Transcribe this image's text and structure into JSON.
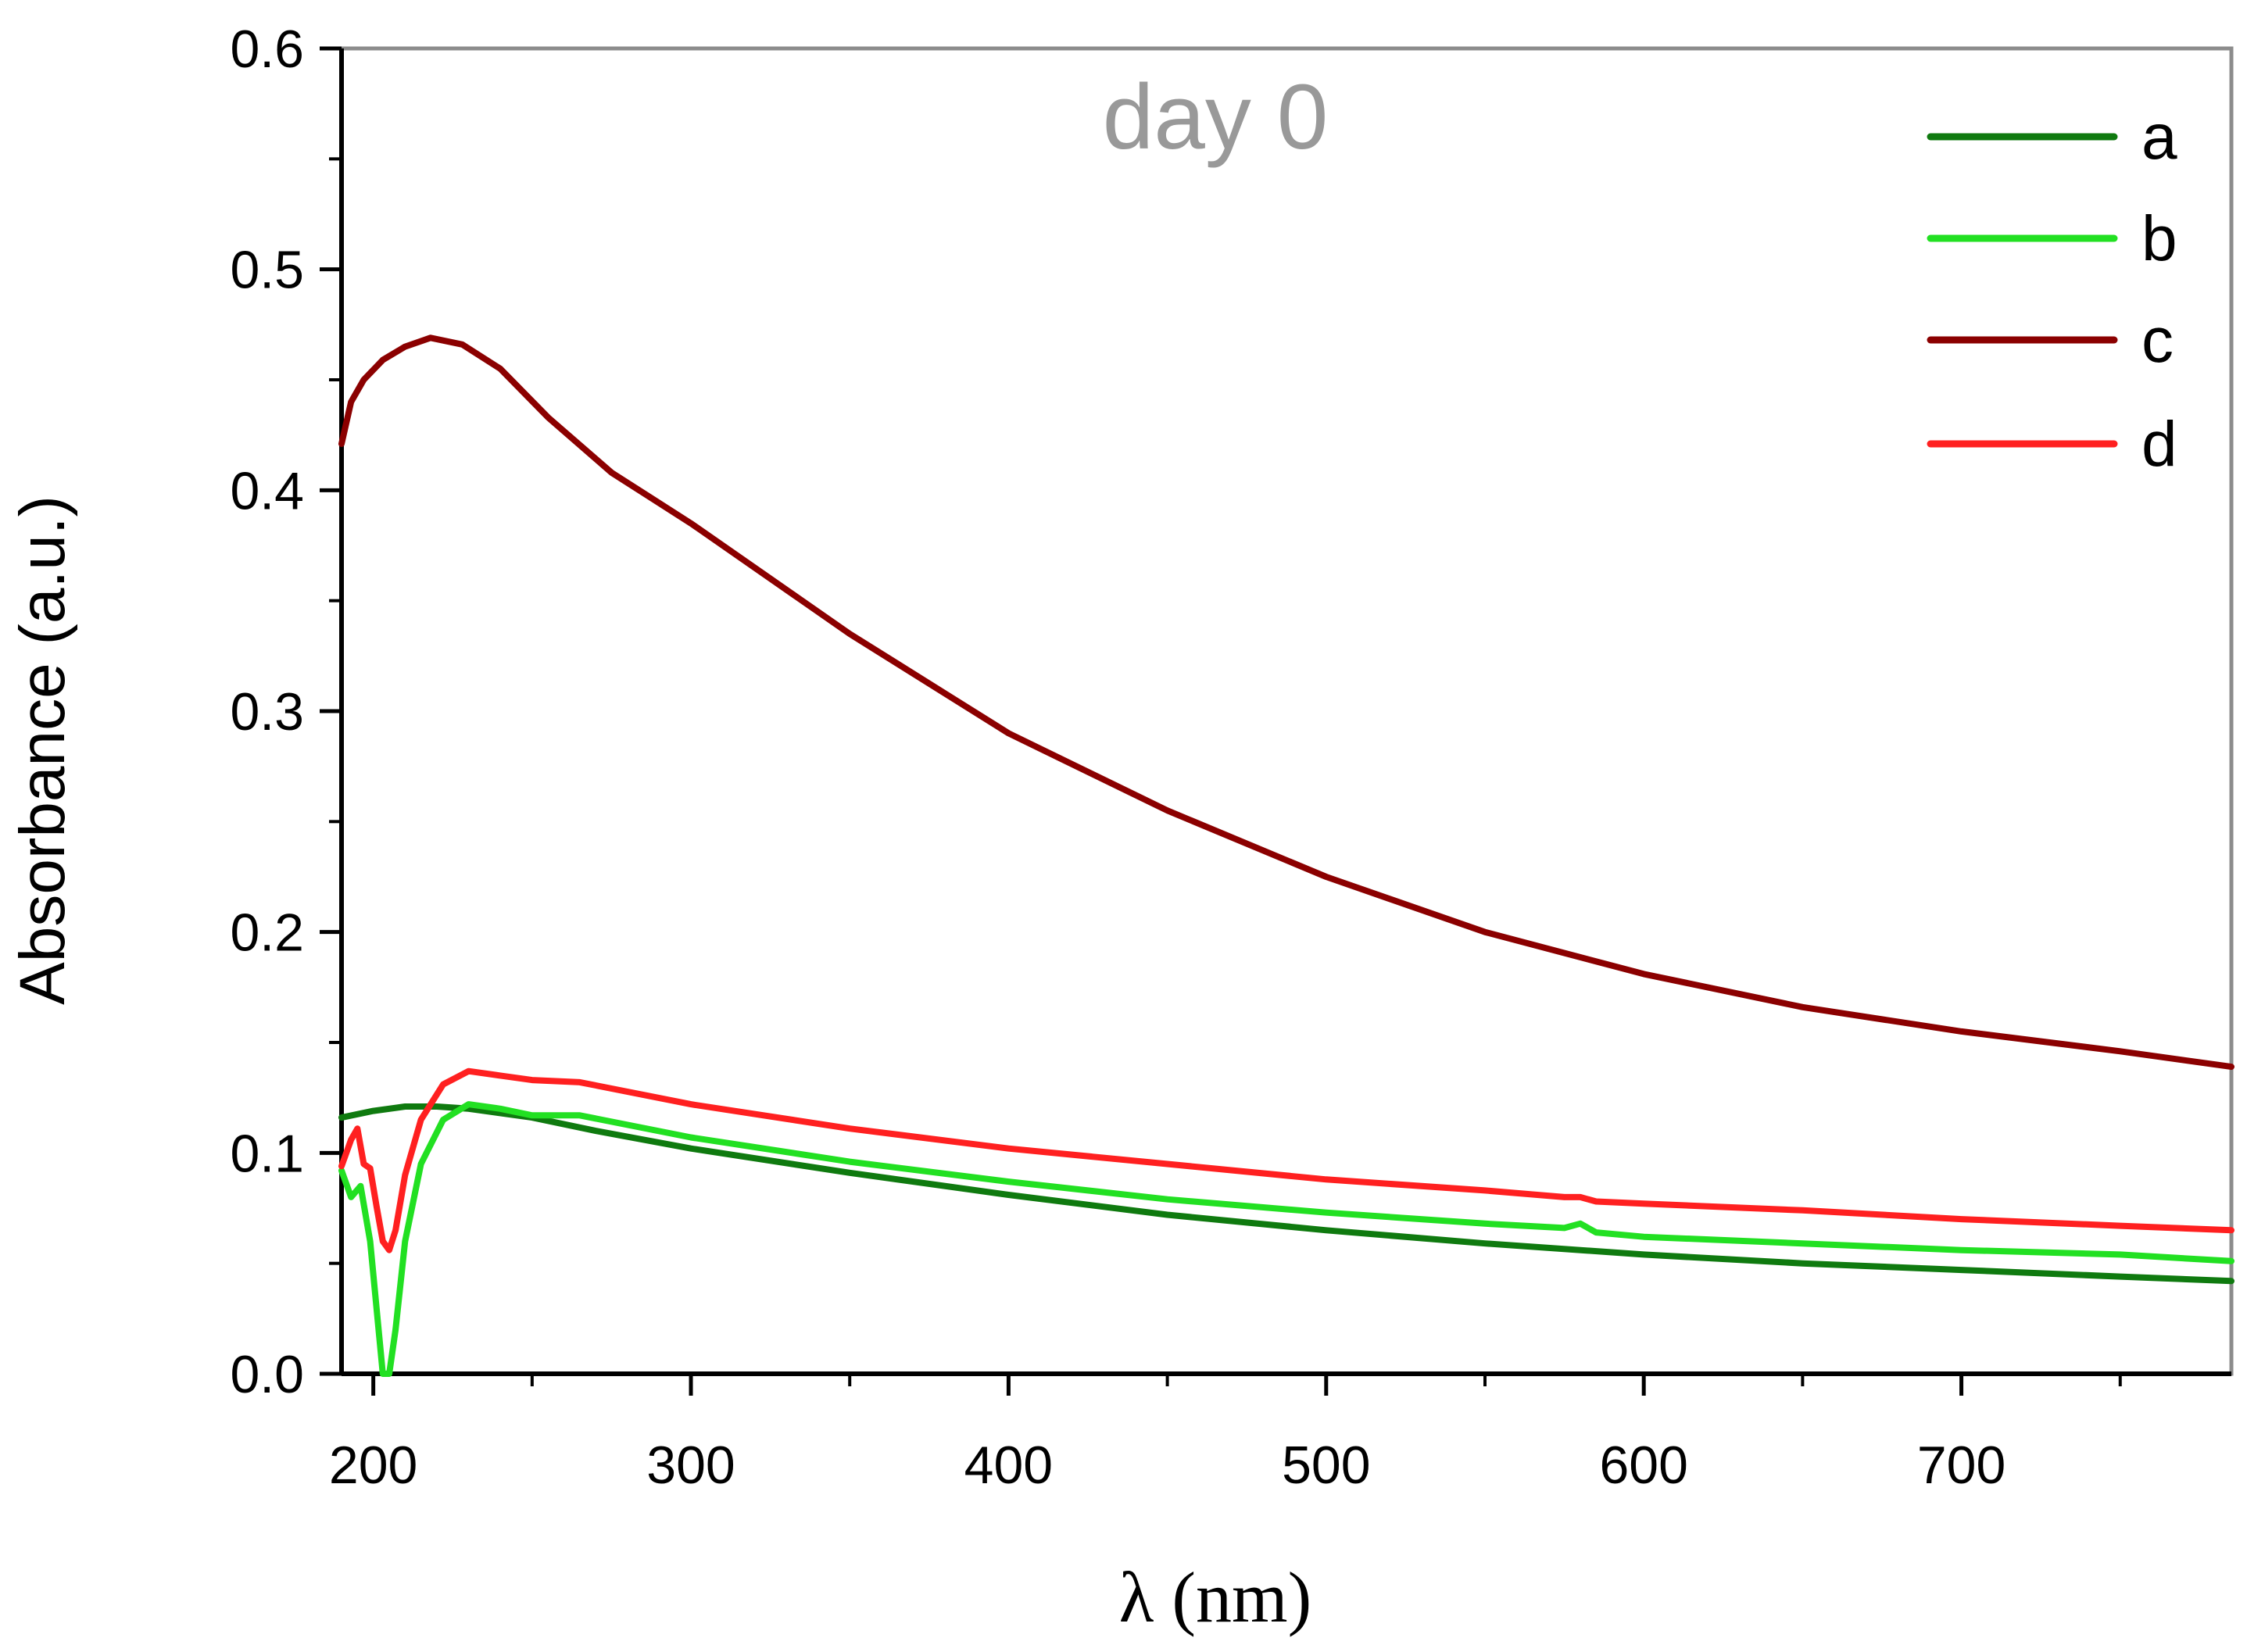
{
  "chart_data": {
    "type": "line",
    "title": "",
    "annotation": "day 0",
    "xlabel": "λ (nm)",
    "ylabel": "Absorbance (a.u.)",
    "xlim": [
      190,
      785
    ],
    "ylim": [
      0.0,
      0.6
    ],
    "xticks": [
      200,
      300,
      400,
      500,
      600,
      700
    ],
    "xtick_labels": [
      "200",
      "300",
      "400",
      "500",
      "600",
      "700"
    ],
    "yticks": [
      0.0,
      0.1,
      0.2,
      0.3,
      0.4,
      0.5,
      0.6
    ],
    "ytick_labels": [
      "0.0",
      "0.1",
      "0.2",
      "0.3",
      "0.4",
      "0.5",
      "0.6"
    ],
    "grid": false,
    "legend_position": "top-right",
    "series": [
      {
        "name": "a",
        "color": "#0f7a0f",
        "x": [
          190,
          200,
          210,
          220,
          230,
          250,
          270,
          300,
          350,
          400,
          450,
          500,
          550,
          600,
          650,
          700,
          750,
          785
        ],
        "y": [
          0.116,
          0.119,
          0.121,
          0.121,
          0.12,
          0.116,
          0.11,
          0.102,
          0.091,
          0.081,
          0.072,
          0.065,
          0.059,
          0.054,
          0.05,
          0.047,
          0.044,
          0.042
        ]
      },
      {
        "name": "b",
        "color": "#22e022",
        "x": [
          190,
          193,
          196,
          199,
          201,
          203,
          205,
          207,
          210,
          215,
          222,
          230,
          240,
          250,
          265,
          300,
          350,
          400,
          450,
          500,
          550,
          575,
          580,
          585,
          600,
          650,
          700,
          750,
          785
        ],
        "y": [
          0.092,
          0.08,
          0.085,
          0.06,
          0.03,
          0.0,
          0.0,
          0.02,
          0.06,
          0.095,
          0.115,
          0.122,
          0.12,
          0.117,
          0.117,
          0.107,
          0.096,
          0.087,
          0.079,
          0.073,
          0.068,
          0.066,
          0.068,
          0.064,
          0.062,
          0.059,
          0.056,
          0.054,
          0.051
        ]
      },
      {
        "name": "c",
        "color": "#8b0000",
        "x": [
          190,
          193,
          197,
          203,
          210,
          218,
          228,
          240,
          255,
          275,
          300,
          350,
          400,
          450,
          500,
          550,
          600,
          650,
          700,
          750,
          785
        ],
        "y": [
          0.421,
          0.44,
          0.45,
          0.459,
          0.465,
          0.469,
          0.466,
          0.455,
          0.433,
          0.408,
          0.385,
          0.335,
          0.29,
          0.255,
          0.225,
          0.2,
          0.181,
          0.166,
          0.155,
          0.146,
          0.139
        ]
      },
      {
        "name": "d",
        "color": "#ff2020",
        "x": [
          190,
          193,
          195,
          197,
          199,
          201,
          203,
          205,
          207,
          210,
          215,
          222,
          230,
          240,
          250,
          265,
          300,
          350,
          400,
          450,
          500,
          550,
          575,
          580,
          585,
          600,
          650,
          700,
          750,
          785
        ],
        "y": [
          0.094,
          0.106,
          0.111,
          0.095,
          0.093,
          0.076,
          0.06,
          0.056,
          0.065,
          0.09,
          0.115,
          0.131,
          0.137,
          0.135,
          0.133,
          0.132,
          0.122,
          0.111,
          0.102,
          0.095,
          0.088,
          0.083,
          0.08,
          0.08,
          0.078,
          0.077,
          0.074,
          0.07,
          0.067,
          0.065
        ]
      }
    ]
  }
}
